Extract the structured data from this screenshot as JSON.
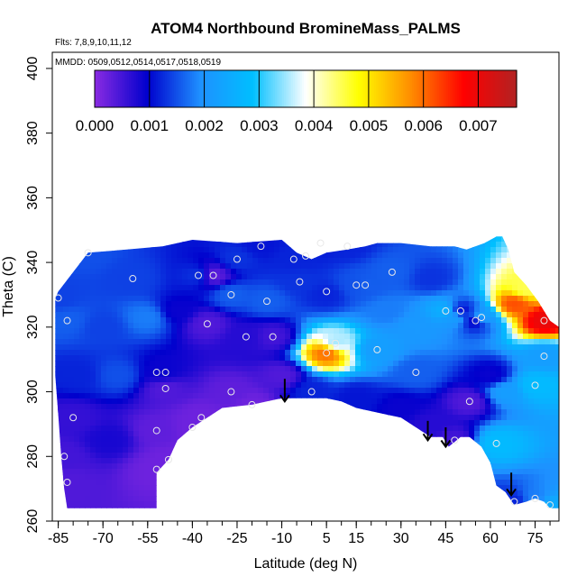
{
  "chart_data": {
    "type": "heatmap",
    "title": "ATOM4 Northbound BromineMass_PALMS",
    "subtitle_flights": "Flts: 7,8,9,10,11,12",
    "subtitle_dates": "MMDD: 0509,0512,0514,0517,0518,0519",
    "xlabel": "Latitude (deg N)",
    "ylabel": "Theta (C)",
    "xlim": [
      -87,
      83
    ],
    "ylim": [
      260,
      405
    ],
    "x_ticks": [
      -85,
      -70,
      -55,
      -40,
      -25,
      -10,
      5,
      15,
      30,
      45,
      60,
      75
    ],
    "x_tick_labels": [
      "-85",
      "-70",
      "-55",
      "-40",
      "-25",
      "-10",
      "5",
      "15",
      "30",
      "45",
      "60",
      "75"
    ],
    "y_ticks": [
      260,
      280,
      300,
      320,
      340,
      360,
      380,
      400
    ],
    "y_tick_labels": [
      "260",
      "280",
      "300",
      "320",
      "340",
      "360",
      "380",
      "400"
    ],
    "colorbar": {
      "min": 0,
      "max": 0.0077,
      "ticks": [
        0.0,
        0.001,
        0.002,
        0.003,
        0.004,
        0.005,
        0.006,
        0.007
      ],
      "tick_labels": [
        "0.000",
        "0.001",
        "0.002",
        "0.003",
        "0.004",
        "0.005",
        "0.006",
        "0.007"
      ],
      "colors": [
        "#8a2be2",
        "#0000cd",
        "#1e90ff",
        "#00bfff",
        "#ffffff",
        "#ffff00",
        "#ff8c00",
        "#ff0000",
        "#b22222"
      ]
    },
    "field_points": [
      {
        "x": -85,
        "y": 329,
        "v": 0.0014
      },
      {
        "x": -82,
        "y": 322,
        "v": 0.0016
      },
      {
        "x": -80,
        "y": 292,
        "v": 0.0006
      },
      {
        "x": -83,
        "y": 280,
        "v": 0.0005
      },
      {
        "x": -82,
        "y": 272,
        "v": 0.0004
      },
      {
        "x": -75,
        "y": 343,
        "v": 0.0015
      },
      {
        "x": -60,
        "y": 335,
        "v": 0.0014
      },
      {
        "x": -55,
        "y": 323,
        "v": 0.0018
      },
      {
        "x": -50,
        "y": 306,
        "v": 0.0009
      },
      {
        "x": -49,
        "y": 301,
        "v": 0.0004
      },
      {
        "x": -52,
        "y": 288,
        "v": 0.0003
      },
      {
        "x": -48,
        "y": 279,
        "v": 0.0002
      },
      {
        "x": -52,
        "y": 276,
        "v": 0.0002
      },
      {
        "x": -40,
        "y": 289,
        "v": 0.0002
      },
      {
        "x": -37,
        "y": 292,
        "v": 0.0002
      },
      {
        "x": -38,
        "y": 336,
        "v": 0.0013
      },
      {
        "x": -35,
        "y": 321,
        "v": 0.0004
      },
      {
        "x": -33,
        "y": 336,
        "v": 0.0003
      },
      {
        "x": -27,
        "y": 330,
        "v": 0.0016
      },
      {
        "x": -25,
        "y": 341,
        "v": 0.0013
      },
      {
        "x": -22,
        "y": 317,
        "v": 0.0007
      },
      {
        "x": -27,
        "y": 300,
        "v": 0.0003
      },
      {
        "x": -20,
        "y": 296,
        "v": 0.0002
      },
      {
        "x": -17,
        "y": 345,
        "v": 0.0011
      },
      {
        "x": -15,
        "y": 328,
        "v": 0.0016
      },
      {
        "x": -13,
        "y": 317,
        "v": 0.0005
      },
      {
        "x": -6,
        "y": 341,
        "v": 0.0012
      },
      {
        "x": -4,
        "y": 334,
        "v": 0.0013
      },
      {
        "x": -2,
        "y": 342,
        "v": 0.0012
      },
      {
        "x": 0,
        "y": 300,
        "v": 0.0012
      },
      {
        "x": 3,
        "y": 346,
        "v": 0.0011
      },
      {
        "x": 5,
        "y": 312,
        "v": 0.006
      },
      {
        "x": 5,
        "y": 330,
        "v": 0.0012
      },
      {
        "x": 8,
        "y": 315,
        "v": 0.0035
      },
      {
        "x": 12,
        "y": 345,
        "v": 0.0012
      },
      {
        "x": 15,
        "y": 333,
        "v": 0.0015
      },
      {
        "x": 18,
        "y": 333,
        "v": 0.0016
      },
      {
        "x": 22,
        "y": 313,
        "v": 0.0022
      },
      {
        "x": 27,
        "y": 337,
        "v": 0.0016
      },
      {
        "x": 35,
        "y": 306,
        "v": 0.0016
      },
      {
        "x": 45,
        "y": 325,
        "v": 0.0026
      },
      {
        "x": 48,
        "y": 323,
        "v": 0.0022
      },
      {
        "x": 50,
        "y": 325,
        "v": 0.001
      },
      {
        "x": 53,
        "y": 297,
        "v": 0.0004
      },
      {
        "x": 48,
        "y": 285,
        "v": 0.0005
      },
      {
        "x": 55,
        "y": 322,
        "v": 0.0008
      },
      {
        "x": 57,
        "y": 323,
        "v": 0.0024
      },
      {
        "x": 62,
        "y": 284,
        "v": 0.0028
      },
      {
        "x": 68,
        "y": 327,
        "v": 0.0062
      },
      {
        "x": 72,
        "y": 332,
        "v": 0.0045
      },
      {
        "x": 78,
        "y": 322,
        "v": 0.007
      },
      {
        "x": 78,
        "y": 311,
        "v": 0.0022
      },
      {
        "x": 75,
        "y": 302,
        "v": 0.0028
      },
      {
        "x": 75,
        "y": 267,
        "v": 0.0018
      },
      {
        "x": 68,
        "y": 266,
        "v": 0.0012
      },
      {
        "x": 80,
        "y": 265,
        "v": 0.0025
      },
      {
        "x": 65,
        "y": 300,
        "v": 0.0022
      },
      {
        "x": 60,
        "y": 305,
        "v": 0.0009
      },
      {
        "x": 40,
        "y": 290,
        "v": 0.0007
      },
      {
        "x": 30,
        "y": 295,
        "v": 0.0009
      },
      {
        "x": 15,
        "y": 298,
        "v": 0.0011
      },
      {
        "x": -65,
        "y": 305,
        "v": 0.0015
      },
      {
        "x": -70,
        "y": 320,
        "v": 0.0014
      },
      {
        "x": -68,
        "y": 285,
        "v": 0.0008
      },
      {
        "x": -78,
        "y": 305,
        "v": 0.0012
      },
      {
        "x": -45,
        "y": 325,
        "v": 0.0009
      },
      {
        "x": -10,
        "y": 305,
        "v": 0.0004
      },
      {
        "x": 25,
        "y": 325,
        "v": 0.0018
      },
      {
        "x": 35,
        "y": 320,
        "v": 0.0021
      },
      {
        "x": 40,
        "y": 335,
        "v": 0.0013
      }
    ],
    "observation_points": [
      {
        "x": -85,
        "y": 329
      },
      {
        "x": -82,
        "y": 322
      },
      {
        "x": -75,
        "y": 343
      },
      {
        "x": -80,
        "y": 292
      },
      {
        "x": -83,
        "y": 280
      },
      {
        "x": -82,
        "y": 272
      },
      {
        "x": -60,
        "y": 335
      },
      {
        "x": -52,
        "y": 306
      },
      {
        "x": -49,
        "y": 306
      },
      {
        "x": -49,
        "y": 301
      },
      {
        "x": -52,
        "y": 288
      },
      {
        "x": -48,
        "y": 279
      },
      {
        "x": -52,
        "y": 276
      },
      {
        "x": -40,
        "y": 289
      },
      {
        "x": -37,
        "y": 292
      },
      {
        "x": -38,
        "y": 336
      },
      {
        "x": -35,
        "y": 321
      },
      {
        "x": -33,
        "y": 336
      },
      {
        "x": -27,
        "y": 330
      },
      {
        "x": -25,
        "y": 341
      },
      {
        "x": -22,
        "y": 317
      },
      {
        "x": -27,
        "y": 300
      },
      {
        "x": -20,
        "y": 296
      },
      {
        "x": -17,
        "y": 345
      },
      {
        "x": -15,
        "y": 328
      },
      {
        "x": -13,
        "y": 317
      },
      {
        "x": -6,
        "y": 341
      },
      {
        "x": -4,
        "y": 334
      },
      {
        "x": -2,
        "y": 342
      },
      {
        "x": 0,
        "y": 300
      },
      {
        "x": 3,
        "y": 346
      },
      {
        "x": 5,
        "y": 312
      },
      {
        "x": 5,
        "y": 331
      },
      {
        "x": 8,
        "y": 315
      },
      {
        "x": 12,
        "y": 345
      },
      {
        "x": 15,
        "y": 333
      },
      {
        "x": 18,
        "y": 333
      },
      {
        "x": 22,
        "y": 313
      },
      {
        "x": 27,
        "y": 337
      },
      {
        "x": 35,
        "y": 306
      },
      {
        "x": 45,
        "y": 325
      },
      {
        "x": 50,
        "y": 325
      },
      {
        "x": 53,
        "y": 297
      },
      {
        "x": 48,
        "y": 285
      },
      {
        "x": 55,
        "y": 322
      },
      {
        "x": 57,
        "y": 323
      },
      {
        "x": 62,
        "y": 284
      },
      {
        "x": 78,
        "y": 322
      },
      {
        "x": 78,
        "y": 311
      },
      {
        "x": 75,
        "y": 302
      },
      {
        "x": 75,
        "y": 267
      },
      {
        "x": 68,
        "y": 266
      },
      {
        "x": 80,
        "y": 265
      }
    ],
    "arrows": [
      {
        "x": -9,
        "y_start": 304,
        "y_end": 297
      },
      {
        "x": 39,
        "y_start": 291,
        "y_end": 285
      },
      {
        "x": 45,
        "y_start": 289,
        "y_end": 283
      },
      {
        "x": 67,
        "y_start": 275,
        "y_end": 268
      }
    ],
    "upper_boundary": [
      [
        -85,
        331
      ],
      [
        -80,
        337
      ],
      [
        -75,
        343
      ],
      [
        -62,
        344
      ],
      [
        -50,
        345
      ],
      [
        -40,
        347
      ],
      [
        -25,
        346
      ],
      [
        -10,
        347
      ],
      [
        -5,
        343
      ],
      [
        0,
        341
      ],
      [
        5,
        343
      ],
      [
        12,
        344
      ],
      [
        18,
        345
      ],
      [
        22,
        346
      ],
      [
        30,
        346
      ],
      [
        40,
        345
      ],
      [
        48,
        345
      ],
      [
        52,
        344
      ],
      [
        58,
        346
      ],
      [
        62,
        348
      ],
      [
        64,
        348
      ],
      [
        66,
        344
      ],
      [
        68,
        337
      ],
      [
        72,
        333
      ],
      [
        76,
        328
      ],
      [
        80,
        322
      ],
      [
        83,
        320
      ]
    ],
    "lower_boundary": [
      [
        83,
        264
      ],
      [
        80,
        264
      ],
      [
        78,
        266
      ],
      [
        75,
        267
      ],
      [
        72,
        266
      ],
      [
        68,
        265
      ],
      [
        65,
        269
      ],
      [
        62,
        271
      ],
      [
        60,
        278
      ],
      [
        57,
        283
      ],
      [
        53,
        286
      ],
      [
        50,
        286
      ],
      [
        46,
        283
      ],
      [
        44,
        286
      ],
      [
        40,
        286
      ],
      [
        35,
        289
      ],
      [
        30,
        292
      ],
      [
        25,
        293
      ],
      [
        20,
        294
      ],
      [
        15,
        295
      ],
      [
        10,
        297
      ],
      [
        5,
        298
      ],
      [
        0,
        298
      ],
      [
        -5,
        298
      ],
      [
        -10,
        298
      ],
      [
        -15,
        297
      ],
      [
        -20,
        296
      ],
      [
        -30,
        295
      ],
      [
        -40,
        289
      ],
      [
        -45,
        285
      ],
      [
        -48,
        279
      ],
      [
        -52,
        275
      ],
      [
        -52,
        264
      ],
      [
        -55,
        264
      ],
      [
        -60,
        264
      ],
      [
        -70,
        264
      ],
      [
        -80,
        264
      ],
      [
        -82,
        264
      ],
      [
        -83,
        270
      ],
      [
        -84,
        280
      ],
      [
        -85,
        293
      ],
      [
        -86,
        305
      ],
      [
        -86,
        320
      ],
      [
        -86,
        329
      ]
    ]
  }
}
